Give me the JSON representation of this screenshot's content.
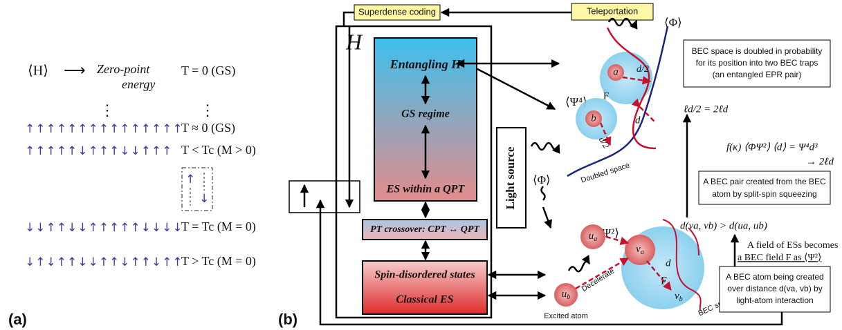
{
  "panel_a": {
    "label": "(a)",
    "expectation": "⟨H⟩",
    "arrow": "⟶",
    "zero_point": [
      "Zero-point",
      "energy"
    ],
    "ground_state": "T = 0 (GS)",
    "ellipsis": "⋮",
    "rows": [
      {
        "spins": "↑↑↑↑↑↑↑↑↑↑↑↑↑↑↑",
        "condition": "T ≈ 0 (GS)"
      },
      {
        "spins": "↑↑↑↑↑↓↑↑↑↓↓↑↑↑",
        "condition": "T < Tc (M > 0)"
      },
      {
        "spins": "↓↓↑↑↓↓↑↑↑↑↑↓↓↓↓",
        "condition": "T = Tc (M = 0)"
      },
      {
        "spins": "↓↑↓↑↑↓↓↑↑↓↑↑↓↑↑",
        "condition": "T > Tc (M = 0)"
      }
    ],
    "flip": [
      "↑",
      "↓"
    ]
  },
  "panel_b": {
    "label": "(b)",
    "superdense": "Superdense coding",
    "teleportation": "Teleportation",
    "hamiltonian": "H",
    "entangling": "Entangling H",
    "gs_regime": "GS regime",
    "es_qpt": "ES within a QPT",
    "pt_crossover": "PT crossover: CPT ↔ QPT",
    "spin_disordered": "Spin-disordered states",
    "classical_es": "Classical ES",
    "light_source": "Light source",
    "phi_left": "⟨Φ⟩",
    "phi_top": "⟨Φ⟩",
    "psi4": "⟨Ψ⁴⟩",
    "psi2": "⟨Ψ²⟩",
    "upper": {
      "a": "a",
      "b": "b",
      "F": "F",
      "half_a": "d/2",
      "half_b": "d/2",
      "d": "d",
      "space": "Doubled space"
    },
    "lower": {
      "ua": {
        "base": "u",
        "sub": "a"
      },
      "va": {
        "base": "v",
        "sub": "a"
      },
      "ub": {
        "base": "u",
        "sub": "b"
      },
      "vb": {
        "base": "v",
        "sub": "b"
      },
      "F": "F",
      "d": "d",
      "decelerate": "Decelerate",
      "excited": "Excited atom",
      "space": "BEC space"
    },
    "box_epr": [
      "BEC space is doubled in probability",
      "for its position into two BEC traps",
      "(an entangled EPR pair)"
    ],
    "eq_half": "ℓd/2 = 2ℓd",
    "eq_f": "f(κ) ⟨ΦΨ²⟩ ⟨d⟩ = Ψ⁴d³",
    "eq_arrow": "→ 2ℓd",
    "box_pair": [
      "A BEC pair created from the BEC",
      "atom by split-spin squeezing"
    ],
    "ineq": "d(va, vb) > d(ua, ub)",
    "field": [
      "A field of ESs becomes",
      "a BEC field F as ⟨Ψ²⟩"
    ],
    "box_atom": [
      "A BEC atom being created",
      "over distance d(va, vb) by",
      "light-atom interaction"
    ]
  }
}
